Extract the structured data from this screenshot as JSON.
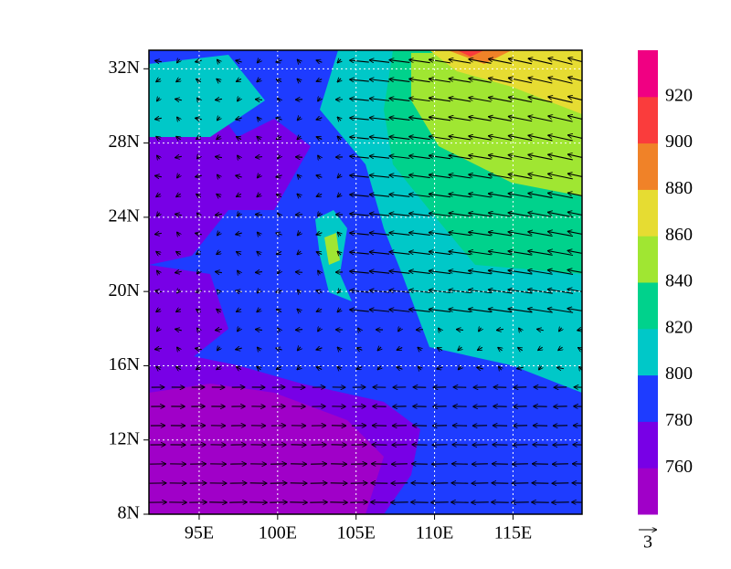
{
  "map": {
    "xlim": [
      91.8,
      119.4
    ],
    "ylim": [
      8,
      33
    ],
    "xticks": [
      {
        "value": 95,
        "label": "95E"
      },
      {
        "value": 100,
        "label": "100E"
      },
      {
        "value": 105,
        "label": "105E"
      },
      {
        "value": 110,
        "label": "110E"
      },
      {
        "value": 115,
        "label": "115E"
      }
    ],
    "yticks": [
      {
        "value": 8,
        "label": "8N"
      },
      {
        "value": 12,
        "label": "12N"
      },
      {
        "value": 16,
        "label": "16N"
      },
      {
        "value": 20,
        "label": "20N"
      },
      {
        "value": 24,
        "label": "24N"
      },
      {
        "value": 28,
        "label": "28N"
      },
      {
        "value": 32,
        "label": "32N"
      }
    ],
    "grid": true,
    "colorbar": {
      "levels": [
        760,
        780,
        800,
        820,
        840,
        860,
        880,
        900,
        920
      ],
      "colors": [
        "#a000c8",
        "#7800e6",
        "#1e3cff",
        "#00c8c8",
        "#00d28c",
        "#a0e632",
        "#e6dc32",
        "#f08228",
        "#fa3c3c",
        "#f00082"
      ]
    },
    "vector_key": "3"
  }
}
